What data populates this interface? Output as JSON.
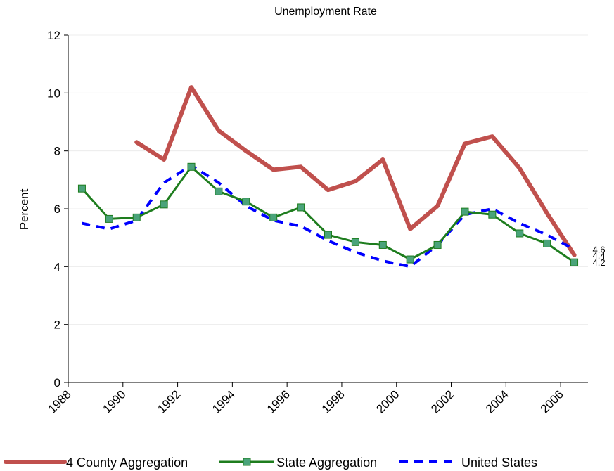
{
  "chart_data": {
    "type": "line",
    "title": "Unemployment Rate",
    "xlabel": "",
    "ylabel": "Percent",
    "x": [
      1988,
      1989,
      1990,
      1991,
      1992,
      1993,
      1994,
      1995,
      1996,
      1997,
      1998,
      1999,
      2000,
      2001,
      2002,
      2003,
      2004,
      2005,
      2006
    ],
    "x_tick_labels": [
      "1988",
      "1990",
      "1992",
      "1994",
      "1996",
      "1998",
      "2000",
      "2002",
      "2004",
      "2006"
    ],
    "y_ticks": [
      "0",
      "2",
      "4",
      "6",
      "8",
      "10",
      "12"
    ],
    "ylim": [
      0,
      12
    ],
    "grid": true,
    "legend_position": "bottom",
    "series": [
      {
        "name": "4 County Aggregation",
        "color": "#c0504d",
        "style": "solid-thick",
        "values": [
          null,
          null,
          8.3,
          7.7,
          10.2,
          8.7,
          8.0,
          7.35,
          7.45,
          6.65,
          6.95,
          7.7,
          5.3,
          6.1,
          8.25,
          8.5,
          7.4,
          5.85,
          4.4
        ],
        "end_label": "4.4"
      },
      {
        "name": "State Aggregation",
        "color": "#1e7d1e",
        "marker_color": "#4aa37a",
        "style": "solid-markers",
        "values": [
          6.7,
          5.65,
          5.7,
          6.15,
          7.45,
          6.6,
          6.25,
          5.7,
          6.05,
          5.1,
          4.85,
          4.75,
          4.25,
          4.75,
          5.9,
          5.8,
          5.15,
          4.8,
          4.15
        ],
        "end_label": "4.2"
      },
      {
        "name": "United States",
        "color": "#0000ff",
        "style": "dashed",
        "values": [
          5.5,
          5.3,
          5.6,
          6.9,
          7.5,
          6.9,
          6.1,
          5.6,
          5.4,
          4.9,
          4.5,
          4.2,
          4.0,
          4.75,
          5.8,
          6.0,
          5.5,
          5.1,
          4.6
        ],
        "end_label": "4.6"
      }
    ]
  }
}
